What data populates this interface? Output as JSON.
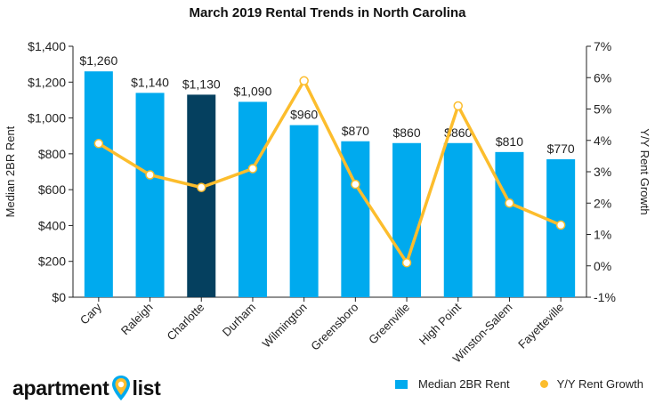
{
  "colors": {
    "bar": "#00aaee",
    "bar_highlight": "#05405f",
    "line": "#fcbd2d",
    "marker_fill": "#ffffff",
    "axis": "#222222"
  },
  "logo": {
    "text_left": "apartment",
    "text_right": "list",
    "icon": "map-pin-icon"
  },
  "chart_data": {
    "type": "bar",
    "title": "March 2019 Rental Trends in North Carolina",
    "categories": [
      "Cary",
      "Raleigh",
      "Charlotte",
      "Durham",
      "Wilmington",
      "Greensboro",
      "Greenville",
      "High Point",
      "Winston-Salem",
      "Fayetteville"
    ],
    "highlight_category": "Charlotte",
    "series": [
      {
        "name": "Median 2BR Rent",
        "type": "bar",
        "axis": "left",
        "values": [
          1260,
          1140,
          1130,
          1090,
          960,
          870,
          860,
          860,
          810,
          770
        ],
        "labels": [
          "$1,260",
          "$1,140",
          "$1,130",
          "$1,090",
          "$960",
          "$870",
          "$860",
          "$860",
          "$810",
          "$770"
        ]
      },
      {
        "name": "Y/Y Rent Growth",
        "type": "line",
        "axis": "right",
        "values": [
          3.9,
          2.9,
          2.5,
          3.1,
          5.9,
          2.6,
          0.1,
          5.1,
          2.0,
          1.3
        ]
      }
    ],
    "ylabel": "Median 2BR Rent",
    "y2label": "Y/Y Rent Growth",
    "ylim": [
      0,
      1400
    ],
    "y2lim": [
      -1,
      7
    ],
    "yticks": [
      "$0",
      "$200",
      "$400",
      "$600",
      "$800",
      "$1,000",
      "$1,200",
      "$1,400"
    ],
    "y2ticks": [
      "-1%",
      "0%",
      "1%",
      "2%",
      "3%",
      "4%",
      "5%",
      "6%",
      "7%"
    ],
    "grid": false,
    "legend_position": "bottom-right"
  }
}
